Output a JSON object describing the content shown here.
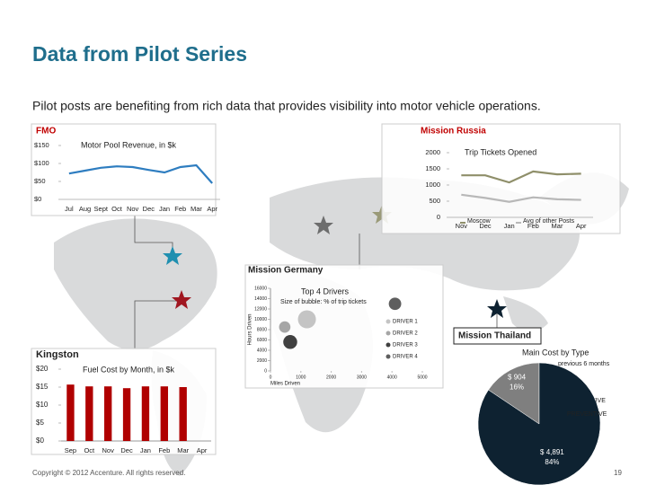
{
  "slide": {
    "title": "Data from Pilot Series",
    "subtitle": "Pilot posts are benefiting from rich data that provides visibility into motor vehicle operations.",
    "footer": "Copyright © 2012 Accenture. All rights reserved.",
    "page": 19
  },
  "chart_data": [
    {
      "type": "line",
      "panel": "FMO",
      "title": "Motor Pool Revenue, in $k",
      "categories": [
        "Jul",
        "Aug",
        "Sept",
        "Oct",
        "Nov",
        "Dec",
        "Jan",
        "Feb",
        "Mar",
        "Apr"
      ],
      "values": [
        72,
        80,
        88,
        92,
        90,
        82,
        75,
        90,
        95,
        45
      ],
      "color": "#2e7dc0",
      "ylim": [
        0,
        150
      ],
      "yticks": [
        {
          "value": 0,
          "label": "$0"
        },
        {
          "value": 50,
          "label": "$50"
        },
        {
          "value": 100,
          "label": "$100"
        },
        {
          "value": 150,
          "label": "$150"
        }
      ]
    },
    {
      "type": "line",
      "panel": "Mission Russia",
      "title": "Trip Tickets Opened",
      "categories": [
        "Nov",
        "Dec",
        "Jan",
        "Feb",
        "Mar",
        "Apr"
      ],
      "series": [
        {
          "name": "Moscow",
          "color": "#8f8f6a",
          "values": [
            1300,
            1300,
            1080,
            1420,
            1330,
            1350
          ]
        },
        {
          "name": "Avg of other Posts",
          "color": "#b8b8b8",
          "values": [
            700,
            600,
            480,
            620,
            560,
            540
          ]
        }
      ],
      "ylim": [
        0,
        2000
      ],
      "yticks": [
        0,
        500,
        1000,
        1500,
        2000
      ]
    },
    {
      "type": "bubble",
      "panel": "Mission Germany",
      "title": "Top 4 Drivers",
      "subtitle": "Size of bubble: % of trip tickets",
      "xlabel": "Miles Driven",
      "ylabel": "Hours Driven",
      "series": [
        {
          "name": "DRIVER 1",
          "color": "#c4c4c4",
          "x": [
            1200
          ],
          "y": [
            10000
          ],
          "size": [
            25
          ]
        },
        {
          "name": "DRIVER 2",
          "color": "#a6a6a6",
          "x": [
            470
          ],
          "y": [
            8500
          ],
          "size": [
            10
          ]
        },
        {
          "name": "DRIVER 3",
          "color": "#404040",
          "x": [
            650
          ],
          "y": [
            5600
          ],
          "size": [
            15
          ]
        },
        {
          "name": "DRIVER 4",
          "color": "#5e5e5e",
          "x": [
            4100
          ],
          "y": [
            13000
          ],
          "size": [
            12
          ]
        }
      ],
      "xlim": [
        0,
        5000
      ],
      "xticks": [
        0,
        1000,
        2000,
        3000,
        4000,
        5000
      ],
      "ylim": [
        0,
        16000
      ],
      "yticks": [
        0,
        2000,
        4000,
        6000,
        8000,
        10000,
        12000,
        14000,
        16000
      ]
    },
    {
      "type": "bar",
      "panel": "Kingston",
      "title": "Fuel Cost by Month, in $k",
      "categories": [
        "Sep",
        "Oct",
        "Nov",
        "Dec",
        "Jan",
        "Feb",
        "Mar",
        "Apr"
      ],
      "values": [
        15.7,
        15.2,
        15.2,
        14.7,
        15.2,
        15.2,
        15,
        null
      ],
      "color": "#b00000",
      "ylim": [
        0,
        20
      ],
      "yticks": [
        {
          "value": 0,
          "label": "$0"
        },
        {
          "value": 5,
          "label": "$5"
        },
        {
          "value": 10,
          "label": "$10"
        },
        {
          "value": 15,
          "label": "$15"
        },
        {
          "value": 20,
          "label": "$20"
        }
      ]
    },
    {
      "type": "pie",
      "panel": "Mission Thailand",
      "title": "Main Cost by Type",
      "subtitle": "previous 6 months",
      "categories": [
        "CORRECTIVE",
        "PREVENTIVE"
      ],
      "values": [
        904,
        4891
      ],
      "value_labels": [
        "$ 904",
        "$ 4,891"
      ],
      "percents": [
        16,
        84
      ],
      "percent_labels": [
        "16%",
        "84%"
      ],
      "colors": [
        "#7f7f7f",
        "#0e2231"
      ]
    }
  ]
}
